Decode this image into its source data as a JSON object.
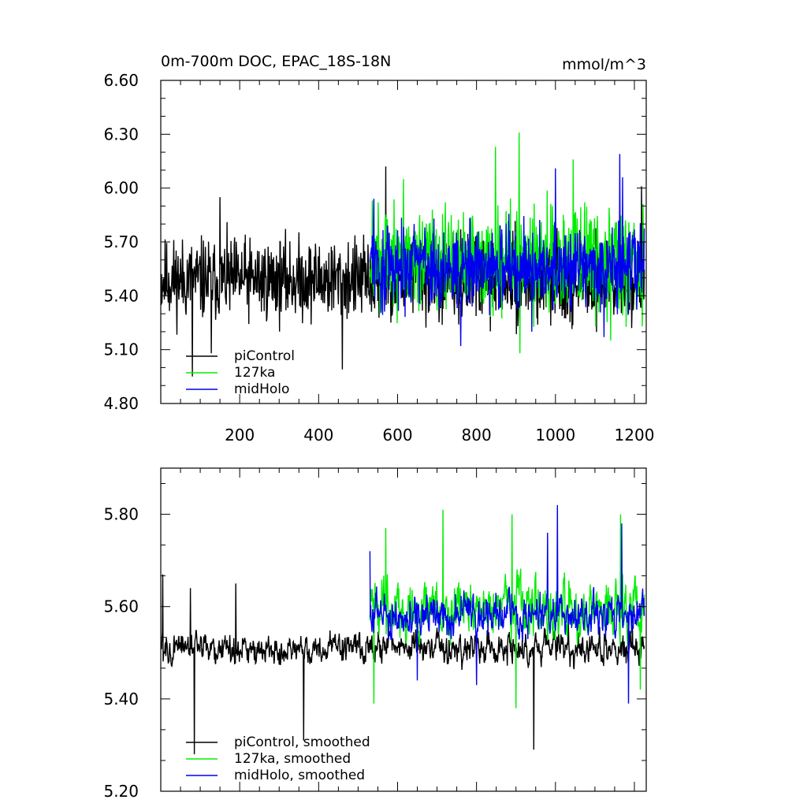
{
  "chart_data": [
    {
      "type": "line",
      "title": "0m-700m DOC, EPAC_18S-18N",
      "units": "mmol/m^3",
      "xlim": [
        0,
        1230
      ],
      "ylim": [
        4.8,
        6.6
      ],
      "xticks": [
        200,
        400,
        600,
        800,
        1000,
        1200
      ],
      "yticks": [
        4.8,
        5.1,
        5.4,
        5.7,
        6.0,
        6.3,
        6.6
      ],
      "ytick_labels": [
        "4.80",
        "5.10",
        "5.40",
        "5.70",
        "6.00",
        "6.30",
        "6.60"
      ],
      "xtick_labels": [
        "200",
        "400",
        "600",
        "800",
        "1000",
        "1200"
      ],
      "grid": false,
      "legend_position": "bottom-left",
      "series": [
        {
          "name": "piControl",
          "color": "#000000",
          "x_start": 1,
          "x_end": 1225,
          "mean": 5.49,
          "amplitude": 0.16,
          "peaks": [
            [
              570,
              6.12
            ],
            [
              1218,
              6.01
            ],
            [
              150,
              5.95
            ]
          ],
          "troughs": [
            [
              460,
              4.99
            ],
            [
              80,
              4.95
            ],
            [
              128,
              5.08
            ]
          ]
        },
        {
          "name": "127ka",
          "color": "#00ee00",
          "x_start": 530,
          "x_end": 1225,
          "mean": 5.59,
          "amplitude": 0.2,
          "peaks": [
            [
              908,
              6.31
            ],
            [
              848,
              6.23
            ],
            [
              1045,
              6.16
            ],
            [
              615,
              6.05
            ]
          ],
          "troughs": [
            [
              910,
              5.08
            ],
            [
              1140,
              5.15
            ],
            [
              1220,
              5.23
            ]
          ]
        },
        {
          "name": "midHolo",
          "color": "#0000ee",
          "x_start": 530,
          "x_end": 1225,
          "mean": 5.57,
          "amplitude": 0.16,
          "peaks": [
            [
              1163,
              6.19
            ],
            [
              1000,
              6.11
            ],
            [
              1170,
              6.06
            ],
            [
              540,
              5.94
            ]
          ],
          "troughs": [
            [
              760,
              5.12
            ],
            [
              1123,
              5.17
            ],
            [
              940,
              5.2
            ]
          ]
        }
      ]
    },
    {
      "type": "line",
      "title": "",
      "xlim": [
        0,
        1230
      ],
      "ylim": [
        5.2,
        5.9
      ],
      "yticks": [
        5.2,
        5.4,
        5.6,
        5.8
      ],
      "ytick_labels": [
        "5.20",
        "5.40",
        "5.60",
        "5.80"
      ],
      "grid": false,
      "legend_position": "bottom-left",
      "series": [
        {
          "name": "piControl, smoothed",
          "color": "#000000",
          "x_start": 1,
          "x_end": 1225,
          "mean": 5.51,
          "amplitude": 0.045,
          "peaks": [
            [
              5,
              5.67
            ],
            [
              75,
              5.64
            ],
            [
              190,
              5.65
            ],
            [
              1195,
              5.56
            ]
          ],
          "troughs": [
            [
              85,
              5.28
            ],
            [
              945,
              5.29
            ],
            [
              362,
              5.31
            ]
          ]
        },
        {
          "name": "127ka, smoothed",
          "color": "#00ee00",
          "x_start": 530,
          "x_end": 1225,
          "mean": 5.6,
          "amplitude": 0.08,
          "peaks": [
            [
              715,
              5.81
            ],
            [
              1165,
              5.8
            ],
            [
              890,
              5.8
            ],
            [
              570,
              5.77
            ]
          ],
          "troughs": [
            [
              540,
              5.39
            ],
            [
              900,
              5.38
            ],
            [
              1215,
              5.42
            ]
          ]
        },
        {
          "name": "midHolo, smoothed",
          "color": "#0000ee",
          "x_start": 530,
          "x_end": 1225,
          "mean": 5.58,
          "amplitude": 0.06,
          "peaks": [
            [
              1005,
              5.82
            ],
            [
              1168,
              5.78
            ],
            [
              980,
              5.76
            ],
            [
              530,
              5.72
            ]
          ],
          "troughs": [
            [
              1185,
              5.39
            ],
            [
              800,
              5.43
            ],
            [
              650,
              5.44
            ]
          ]
        }
      ]
    }
  ]
}
